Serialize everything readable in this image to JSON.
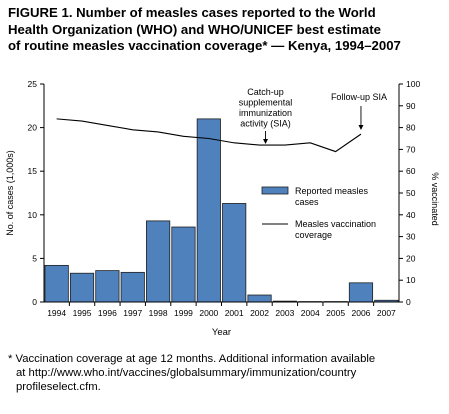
{
  "figure": {
    "title_line1": "FIGURE 1. Number of measles cases reported to the World",
    "title_line2": "Health Organization (WHO) and WHO/UNICEF best estimate",
    "title_line3": "of routine measles vaccination coverage* — Kenya, 1994–2007"
  },
  "footnote": {
    "line1": "* Vaccination coverage at age 12 months. Additional information available",
    "line2": "at  http://www.who.int/vaccines/globalsummary/immunization/country",
    "line3": "profileselect.cfm."
  },
  "chart_data": {
    "type": "bar",
    "title": "",
    "xlabel": "Year",
    "ylabel": "No. of cases (1,000s)",
    "y2label": "% vaccinated",
    "categories": [
      "1994",
      "1995",
      "1996",
      "1997",
      "1998",
      "1999",
      "2000",
      "2001",
      "2002",
      "2003",
      "2004",
      "2005",
      "2006",
      "2007"
    ],
    "ylim": [
      0,
      25
    ],
    "yticks": [
      0,
      5,
      10,
      15,
      20,
      25
    ],
    "y2lim": [
      0,
      100
    ],
    "y2ticks": [
      0,
      10,
      20,
      30,
      40,
      50,
      60,
      70,
      80,
      90,
      100
    ],
    "series": [
      {
        "name": "Reported measles cases",
        "type": "bar",
        "axis": "left",
        "color": "#4f81bd",
        "values": [
          4.2,
          3.3,
          3.6,
          3.4,
          9.3,
          8.6,
          21.0,
          11.3,
          0.8,
          0.1,
          0.05,
          0.05,
          2.2,
          0.2
        ]
      },
      {
        "name": "Measles vaccination coverage",
        "type": "line",
        "axis": "right",
        "color": "#000000",
        "values": [
          84,
          83,
          81,
          79,
          78,
          76,
          75,
          73,
          72,
          72,
          73,
          69,
          77,
          null
        ]
      }
    ],
    "legend": {
      "position": "right",
      "bar_label_line1": "Reported measles",
      "bar_label_line2": "cases",
      "line_label_line1": "Measles vaccination",
      "line_label_line2": "coverage"
    },
    "annotations": [
      {
        "lines": [
          "Catch-up",
          "supplemental",
          "immunization",
          "activity (SIA)"
        ],
        "x": "2002"
      },
      {
        "lines": [
          "Follow-up SIA"
        ],
        "x": "2006"
      }
    ],
    "grid": false
  }
}
